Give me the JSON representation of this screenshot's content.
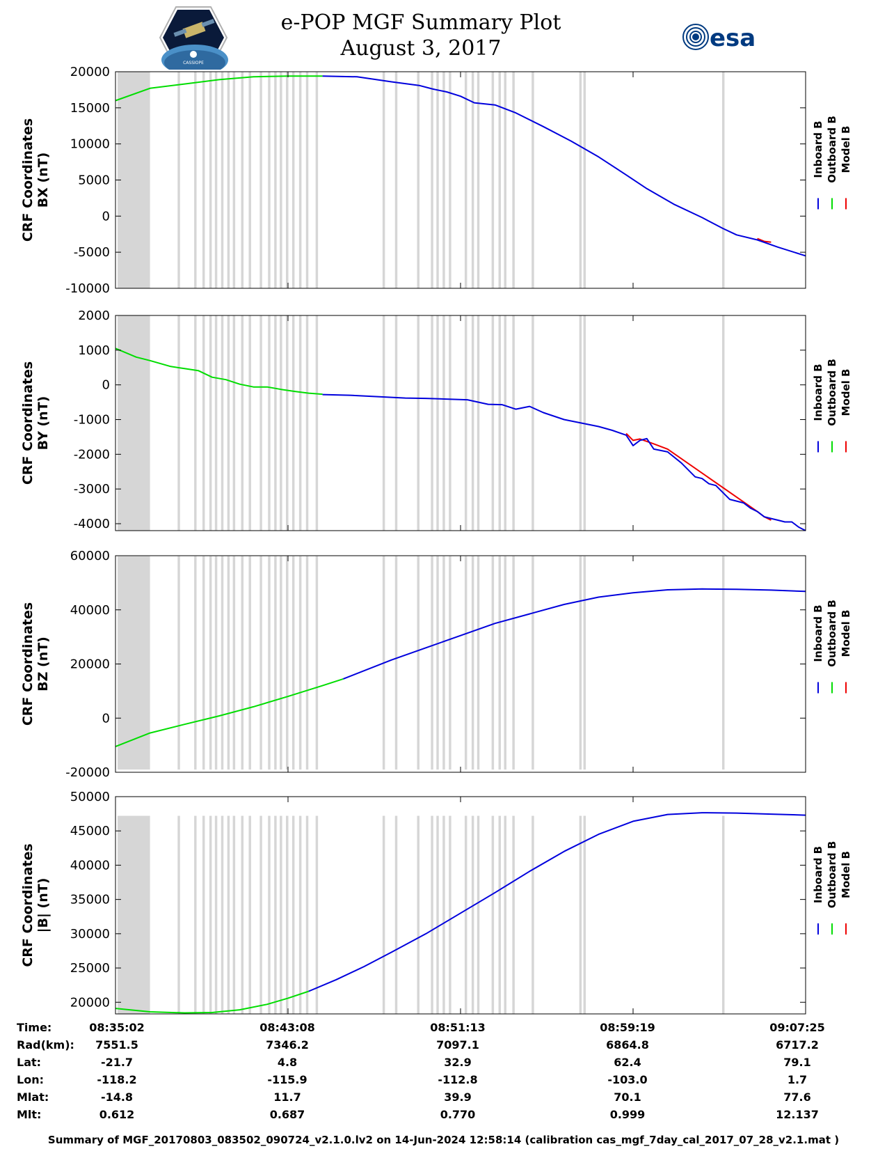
{
  "title": {
    "line1": "e-POP MGF Summary Plot",
    "line2": "August 3, 2017"
  },
  "logos": {
    "left": "cassiope-mission-logo",
    "right": "esa-logo",
    "right_text": "esa",
    "left_text": "CASSIOPE"
  },
  "colors": {
    "inboard": "#0000dd",
    "outboard": "#00dd00",
    "model": "#ee0000",
    "gap_shading": "#d6d6d6",
    "axis": "#000000"
  },
  "legend_labels": [
    "Inboard B",
    "Outboard B",
    "Model B"
  ],
  "gaps": [
    [
      0.3,
      5.0
    ],
    [
      9.0,
      9.35
    ],
    [
      11.4,
      11.75
    ],
    [
      12.6,
      12.95
    ],
    [
      13.6,
      13.95
    ],
    [
      14.4,
      14.75
    ],
    [
      15.3,
      15.65
    ],
    [
      16.2,
      16.55
    ],
    [
      17.0,
      17.35
    ],
    [
      18.2,
      18.55
    ],
    [
      19.3,
      19.65
    ],
    [
      20.9,
      21.25
    ],
    [
      22.1,
      22.45
    ],
    [
      23.0,
      23.35
    ],
    [
      23.8,
      24.15
    ],
    [
      24.7,
      25.05
    ],
    [
      25.6,
      25.95
    ],
    [
      26.6,
      26.95
    ],
    [
      27.6,
      27.95
    ],
    [
      29.0,
      29.35
    ],
    [
      38.7,
      39.05
    ],
    [
      40.5,
      40.85
    ],
    [
      43.7,
      44.05
    ],
    [
      45.7,
      46.05
    ],
    [
      46.5,
      46.85
    ],
    [
      47.4,
      47.75
    ],
    [
      48.3,
      48.65
    ],
    [
      50.6,
      50.95
    ],
    [
      51.6,
      51.95
    ],
    [
      52.4,
      52.75
    ],
    [
      54.5,
      54.85
    ],
    [
      55.5,
      55.85
    ],
    [
      56.3,
      56.65
    ],
    [
      57.5,
      57.85
    ],
    [
      60.3,
      60.65
    ],
    [
      67.2,
      67.55
    ],
    [
      67.8,
      68.15
    ],
    [
      87.9,
      88.25
    ]
  ],
  "chart_data": [
    {
      "type": "line",
      "ylabel": [
        "CRF Coordinates",
        "BX (nT)"
      ],
      "ylim": [
        -10000,
        20000
      ],
      "yticks": [
        20000,
        15000,
        10000,
        5000,
        0,
        -5000,
        -10000
      ],
      "gap_top": 20000,
      "gap_bottom": -10000,
      "x_unit": "percent_of_time_span",
      "outboard": {
        "x": [
          0,
          5,
          10,
          15,
          20,
          25,
          30
        ],
        "y": [
          16000,
          17700,
          18300,
          18900,
          19300,
          19400,
          19400
        ]
      },
      "inboard": {
        "x": [
          30,
          35,
          40,
          44,
          46,
          48,
          50,
          52,
          55,
          58,
          62,
          66,
          70,
          74,
          77,
          81,
          85,
          88,
          90,
          93,
          96,
          100
        ],
        "y": [
          19400,
          19300,
          18600,
          18100,
          17600,
          17200,
          16600,
          15700,
          15400,
          14300,
          12400,
          10400,
          8200,
          5700,
          3800,
          1600,
          -200,
          -1700,
          -2600,
          -3300,
          -4300,
          -5500
        ]
      },
      "model": {
        "x": [
          93,
          94,
          95
        ],
        "y": [
          -3100,
          -3500,
          -3600
        ]
      }
    },
    {
      "type": "line",
      "ylabel": [
        "CRF Coordinates",
        "BY (nT)"
      ],
      "ylim": [
        -4200,
        2000
      ],
      "yticks": [
        2000,
        1000,
        0,
        -1000,
        -2000,
        -3000,
        -4000
      ],
      "gap_top": 2000,
      "gap_bottom": -4200,
      "x_unit": "percent_of_time_span",
      "outboard": {
        "x": [
          0,
          3,
          5,
          8,
          10,
          12,
          14,
          16,
          18,
          20,
          22,
          24,
          26,
          28,
          30
        ],
        "y": [
          1050,
          800,
          700,
          530,
          470,
          410,
          220,
          150,
          20,
          -60,
          -60,
          -130,
          -190,
          -240,
          -270
        ]
      },
      "inboard": {
        "x": [
          30,
          34,
          38,
          42,
          45,
          48,
          51,
          54,
          56,
          58,
          60,
          62,
          65,
          68,
          70,
          72,
          74,
          75,
          76,
          77,
          78,
          80,
          82,
          84,
          85,
          86,
          87,
          88,
          89,
          90,
          91,
          92,
          93,
          94,
          95,
          96,
          97,
          98,
          99,
          100
        ],
        "y": [
          -280,
          -300,
          -340,
          -380,
          -390,
          -410,
          -430,
          -560,
          -570,
          -700,
          -620,
          -800,
          -1000,
          -1120,
          -1200,
          -1310,
          -1450,
          -1750,
          -1600,
          -1550,
          -1850,
          -1930,
          -2250,
          -2650,
          -2700,
          -2850,
          -2900,
          -3100,
          -3300,
          -3350,
          -3400,
          -3550,
          -3650,
          -3800,
          -3850,
          -3900,
          -3950,
          -3950,
          -4100,
          -4200
        ]
      },
      "model": {
        "x": [
          74,
          75,
          76,
          78,
          80,
          93,
          94,
          95
        ],
        "y": [
          -1400,
          -1600,
          -1560,
          -1700,
          -1850,
          -3650,
          -3800,
          -3900
        ]
      }
    },
    {
      "type": "line",
      "ylabel": [
        "CRF Coordinates",
        "BZ (nT)"
      ],
      "ylim": [
        -20000,
        60000
      ],
      "yticks": [
        60000,
        40000,
        20000,
        0,
        -20000
      ],
      "gap_top": 59800,
      "gap_bottom": -19000,
      "x_unit": "percent_of_time_span",
      "outboard": {
        "x": [
          0,
          5,
          10,
          15,
          20,
          25,
          30,
          33
        ],
        "y": [
          -10500,
          -5500,
          -2300,
          800,
          4200,
          8000,
          12000,
          14500
        ]
      },
      "inboard": {
        "x": [
          33,
          40,
          45,
          50,
          55,
          60,
          65,
          70,
          75,
          80,
          85,
          90,
          95,
          100
        ],
        "y": [
          14500,
          21500,
          26000,
          30500,
          35000,
          38500,
          42000,
          44700,
          46300,
          47400,
          47700,
          47600,
          47300,
          46800
        ]
      },
      "model": {
        "x": [],
        "y": []
      }
    },
    {
      "type": "line",
      "ylabel": [
        "CRF Coordinates",
        "|B| (nT)"
      ],
      "ylim": [
        18300,
        50000
      ],
      "yticks": [
        50000,
        45000,
        40000,
        35000,
        30000,
        25000,
        20000
      ],
      "gap_top": 47200,
      "gap_bottom": 18300,
      "x_unit": "percent_of_time_span",
      "outboard": {
        "x": [
          0,
          5,
          10,
          14,
          18,
          22,
          25,
          28
        ],
        "y": [
          19100,
          18600,
          18450,
          18500,
          18900,
          19700,
          20600,
          21600
        ]
      },
      "inboard": {
        "x": [
          28,
          32,
          36,
          40,
          45,
          50,
          55,
          60,
          65,
          70,
          75,
          80,
          85,
          90,
          95,
          100
        ],
        "y": [
          21600,
          23300,
          25200,
          27300,
          30000,
          33000,
          36000,
          39100,
          42000,
          44500,
          46400,
          47400,
          47650,
          47600,
          47450,
          47300
        ]
      },
      "model": {
        "x": [],
        "y": []
      }
    }
  ],
  "info_table": {
    "labels": [
      "Time:",
      "Rad(km):",
      "Lat:",
      "Lon:",
      "Mlat:",
      "Mlt:"
    ],
    "columns": [
      [
        "08:35:02",
        "7551.5",
        "-21.7",
        "-118.2",
        "-14.8",
        "0.612"
      ],
      [
        "08:43:08",
        "7346.2",
        "4.8",
        "-115.9",
        "11.7",
        "0.687"
      ],
      [
        "08:51:13",
        "7097.1",
        "32.9",
        "-112.8",
        "39.9",
        "0.770"
      ],
      [
        "08:59:19",
        "6864.8",
        "62.4",
        "-103.0",
        "70.1",
        "0.999"
      ],
      [
        "09:07:25",
        "6717.2",
        "79.1",
        "1.7",
        "77.6",
        "12.137"
      ]
    ]
  },
  "footer": "Summary of MGF_20170803_083502_090724_v2.1.0.lv2 on 14-Jun-2024 12:58:14 (calibration cas_mgf_7day_cal_2017_07_28_v2.1.mat )"
}
